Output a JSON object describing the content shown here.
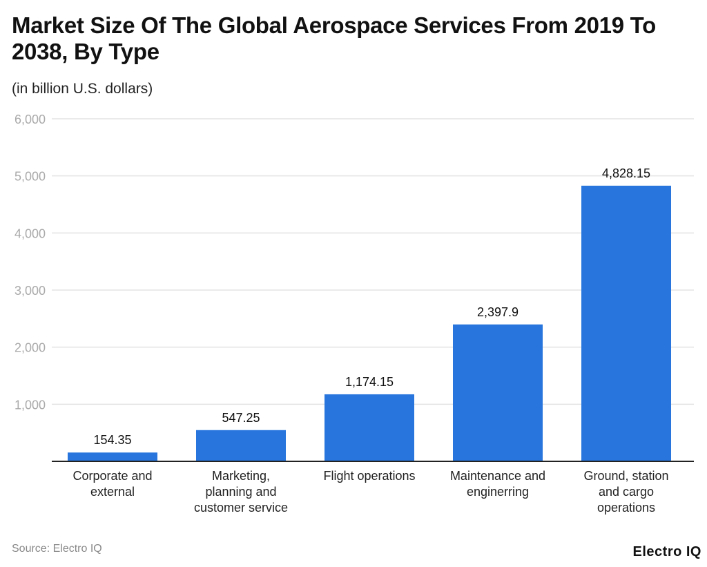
{
  "chart_data": {
    "type": "bar",
    "title": "Market Size Of The Global Aerospace Services From 2019 To 2038, By Type",
    "subtitle": "(in billion U.S. dollars)",
    "categories": [
      [
        "Corporate and",
        "external"
      ],
      [
        "Marketing,",
        "planning and",
        "customer service"
      ],
      [
        "Flight operations"
      ],
      [
        "Maintenance and",
        "enginerring"
      ],
      [
        "Ground, station",
        "and cargo",
        "operations"
      ]
    ],
    "values": [
      154.35,
      547.25,
      1174.15,
      2397.9,
      4828.15
    ],
    "data_labels": [
      "154.35",
      "547.25",
      "1,174.15",
      "2,397.9",
      "4,828.15"
    ],
    "yticks": [
      1000,
      2000,
      3000,
      4000,
      5000,
      6000
    ],
    "ytick_labels": [
      "1,000",
      "2,000",
      "3,000",
      "4,000",
      "5,000",
      "6,000"
    ],
    "ylim": [
      0,
      6000
    ],
    "grid": true,
    "bar_color": "#2876dd"
  },
  "source": "Source: Electro IQ",
  "logo": "Electro IQ"
}
